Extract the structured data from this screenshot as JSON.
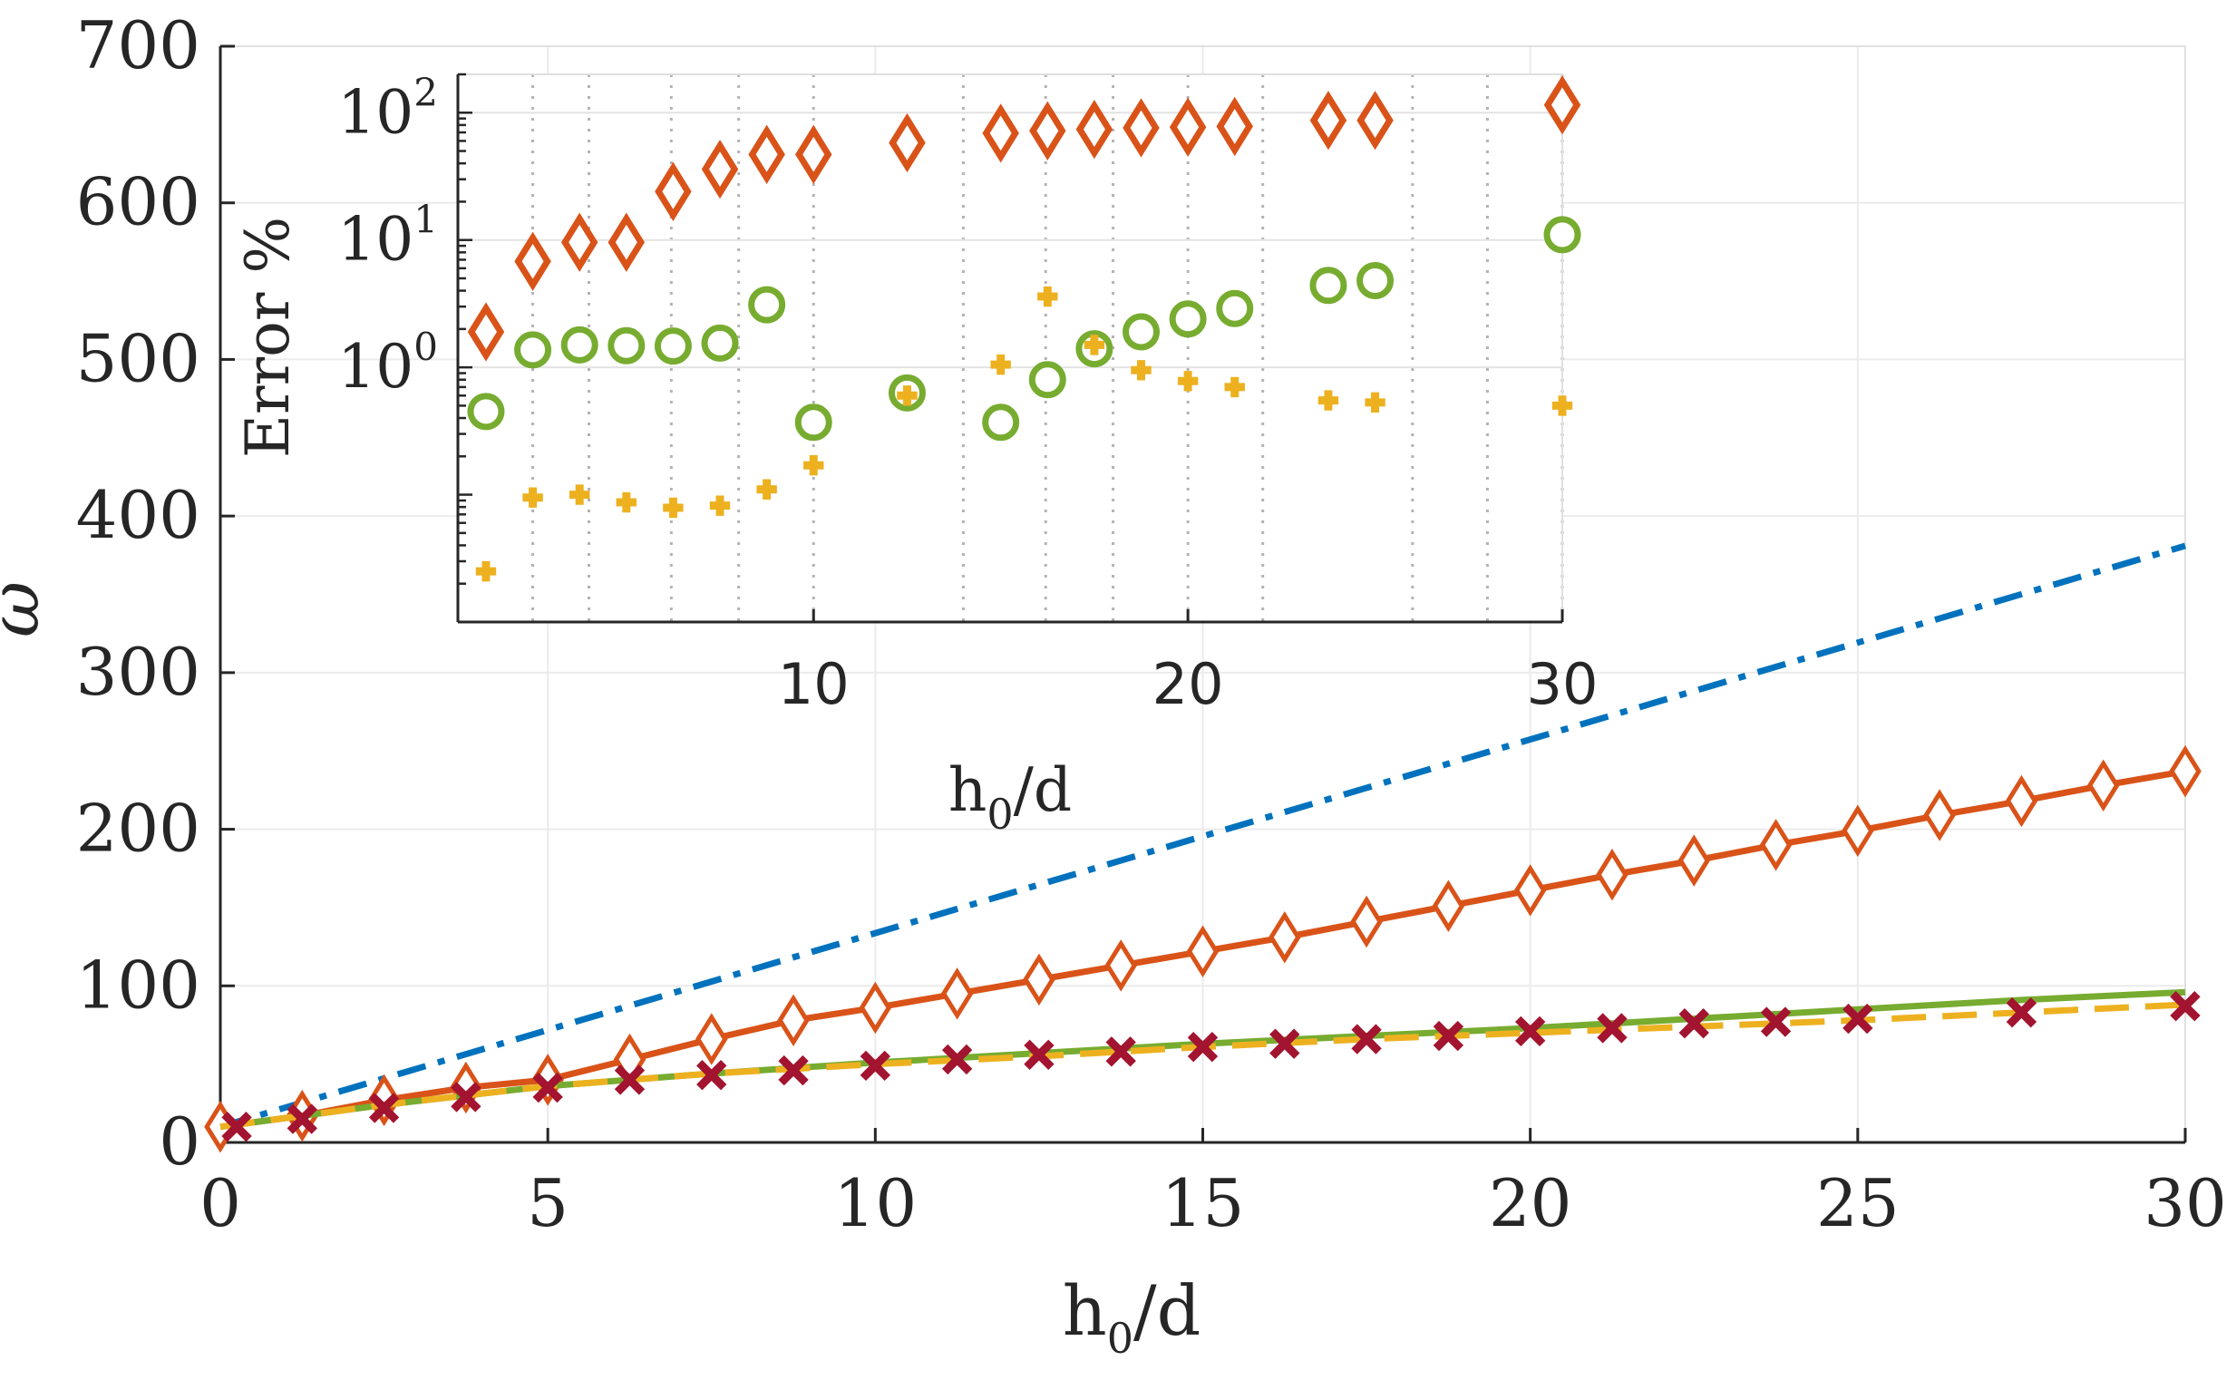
{
  "colors": {
    "blue": "#0072BD",
    "orange": "#D95319",
    "yellow": "#EDB120",
    "green": "#77AC30",
    "red": "#A2142F",
    "axis": "#262626",
    "grid": "#e6e6e6"
  },
  "chart_data": [
    {
      "type": "line",
      "title": "",
      "xlabel": "h_0/d",
      "ylabel": "ω",
      "xlim": [
        0,
        30
      ],
      "ylim": [
        0,
        700
      ],
      "grid": true,
      "xticks": [
        "0",
        "5",
        "10",
        "15",
        "20",
        "25",
        "30"
      ],
      "yticks": [
        "0",
        "100",
        "200",
        "300",
        "400",
        "500",
        "600",
        "700"
      ],
      "series": [
        {
          "name": "blue dash-dot line",
          "style": "dashdot",
          "marker": "none",
          "color": "#0072BD",
          "x": [
            0,
            30
          ],
          "y": [
            10,
            381
          ]
        },
        {
          "name": "orange diamonds",
          "style": "solid",
          "marker": "diamond",
          "color": "#D95319",
          "x": [
            0,
            1.25,
            2.5,
            3.75,
            5,
            6.25,
            7.5,
            8.75,
            10,
            11.25,
            12.5,
            13.75,
            15,
            16.25,
            17.5,
            18.75,
            20,
            21.25,
            22.5,
            23.75,
            25,
            26.25,
            27.5,
            28.75,
            30
          ],
          "y": [
            10,
            17,
            27,
            35,
            40,
            53,
            66,
            78,
            86,
            95,
            104,
            113,
            122,
            131,
            141,
            151,
            161,
            171,
            180,
            190,
            199,
            209,
            218,
            228,
            237
          ]
        },
        {
          "name": "green line",
          "style": "solid",
          "marker": "none",
          "color": "#77AC30",
          "x": [
            0,
            2.5,
            5,
            7.5,
            10,
            12.5,
            15,
            17.5,
            20,
            22.5,
            25,
            27.5,
            30
          ],
          "y": [
            10,
            24,
            36,
            44,
            51,
            57,
            63,
            68,
            73,
            79,
            85,
            91,
            96
          ]
        },
        {
          "name": "yellow dashed line",
          "style": "dashed",
          "marker": "none",
          "color": "#EDB120",
          "x": [
            0,
            2.5,
            5,
            7.5,
            10,
            12.5,
            15,
            17.5,
            20,
            22.5,
            25,
            27.5,
            30
          ],
          "y": [
            10,
            24,
            36,
            44,
            50,
            55,
            61,
            66,
            70,
            74,
            78,
            83,
            88
          ]
        },
        {
          "name": "red crosses",
          "style": "none",
          "marker": "x",
          "color": "#A2142F",
          "x": [
            0.25,
            1.25,
            2.5,
            3.75,
            5,
            6.25,
            7.5,
            8.75,
            10,
            11.25,
            12.5,
            13.75,
            15,
            16.25,
            17.5,
            18.75,
            20,
            21.25,
            22.5,
            23.75,
            25,
            27.5,
            30
          ],
          "y": [
            10,
            15,
            22,
            29,
            35,
            40,
            43,
            46,
            49,
            53,
            56,
            58,
            61,
            63,
            66,
            68,
            71,
            73,
            76,
            77,
            79,
            83,
            87
          ]
        }
      ]
    },
    {
      "type": "scatter",
      "title": "",
      "xlabel": "h_0/d",
      "ylabel": "Error %",
      "xlim": [
        0.5,
        30
      ],
      "ylim": [
        0.01,
        200
      ],
      "yscale": "log",
      "grid": "x-dotted",
      "xticks": [
        "10",
        "20",
        "30"
      ],
      "yticks": [
        {
          "base": "10",
          "exp": "0"
        },
        {
          "base": "10",
          "exp": "1"
        },
        {
          "base": "10",
          "exp": "2"
        }
      ],
      "series": [
        {
          "name": "orange diamonds",
          "marker": "diamond",
          "color": "#D95319",
          "x": [
            1.25,
            2.5,
            3.75,
            5,
            6.25,
            7.5,
            8.75,
            10,
            12.5,
            15,
            16.25,
            17.5,
            18.75,
            20,
            21.25,
            23.75,
            25,
            30
          ],
          "y": [
            1.9,
            6.8,
            9.6,
            9.6,
            24,
            36,
            47,
            47,
            58,
            69,
            72,
            74,
            76,
            77,
            78,
            87,
            87,
            115
          ]
        },
        {
          "name": "green circles",
          "marker": "circle",
          "color": "#77AC30",
          "x": [
            1.25,
            2.5,
            3.75,
            5,
            6.25,
            7.5,
            8.75,
            10,
            12.5,
            15,
            16.25,
            17.5,
            18.75,
            20,
            21.25,
            23.75,
            25,
            30
          ],
          "y": [
            0.45,
            1.37,
            1.5,
            1.48,
            1.47,
            1.55,
            3.1,
            0.37,
            0.63,
            0.37,
            0.8,
            1.4,
            1.9,
            2.4,
            2.9,
            4.4,
            4.8,
            11
          ]
        },
        {
          "name": "yellow plus",
          "marker": "plus",
          "color": "#EDB120",
          "x": [
            1.25,
            2.5,
            3.75,
            5,
            6.25,
            7.5,
            8.75,
            10,
            12.5,
            15,
            16.25,
            17.5,
            18.75,
            20,
            21.25,
            23.75,
            25,
            30
          ],
          "y": [
            0.025,
            0.095,
            0.1,
            0.087,
            0.079,
            0.082,
            0.11,
            0.17,
            0.6,
            1.05,
            3.6,
            1.5,
            0.95,
            0.78,
            0.7,
            0.55,
            0.53,
            0.5
          ]
        }
      ]
    }
  ]
}
